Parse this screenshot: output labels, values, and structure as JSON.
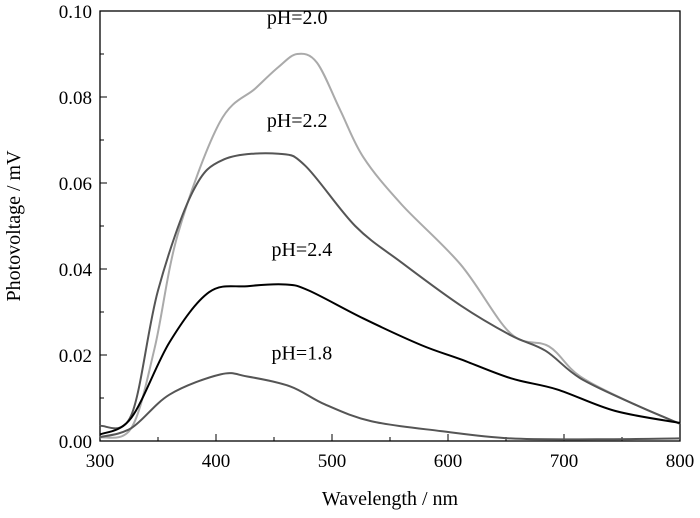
{
  "chart_data": {
    "type": "line",
    "xlabel": "Wavelength / nm",
    "ylabel": "Photovoltage / mV",
    "xlim": [
      300,
      800
    ],
    "ylim": [
      0,
      0.1
    ],
    "xticks": [
      "300",
      "400",
      "500",
      "600",
      "700",
      "800"
    ],
    "yticks": [
      "0.00",
      "0.02",
      "0.04",
      "0.06",
      "0.08",
      "0.10"
    ],
    "grid": false,
    "series": [
      {
        "name": "pH=2.0",
        "color": "#aaaaaa",
        "label_at": [
          470,
          0.097
        ],
        "x": [
          300,
          327,
          347,
          367,
          403,
          434,
          454,
          470,
          487,
          507,
          527,
          560,
          611,
          654,
          687,
          714,
          761,
          800
        ],
        "y": [
          0.0008,
          0.003,
          0.0215,
          0.048,
          0.074,
          0.082,
          0.087,
          0.09,
          0.088,
          0.077,
          0.066,
          0.055,
          0.041,
          0.025,
          0.022,
          0.015,
          0.0085,
          0.004
        ]
      },
      {
        "name": "pH=2.2",
        "color": "#555555",
        "label_at": [
          470,
          0.073
        ],
        "x": [
          300,
          327,
          350,
          380,
          407,
          454,
          477,
          520,
          560,
          611,
          654,
          684,
          714,
          761,
          800
        ],
        "y": [
          0.0035,
          0.006,
          0.035,
          0.058,
          0.0655,
          0.0668,
          0.064,
          0.05,
          0.0415,
          0.0315,
          0.0246,
          0.021,
          0.0146,
          0.0085,
          0.004
        ]
      },
      {
        "name": "pH=2.4",
        "color": "#000000",
        "label_at": [
          474,
          0.043
        ],
        "x": [
          300,
          327,
          360,
          394,
          427,
          460,
          480,
          527,
          577,
          611,
          654,
          694,
          744,
          800
        ],
        "y": [
          0.0015,
          0.0054,
          0.023,
          0.0346,
          0.036,
          0.0364,
          0.035,
          0.0285,
          0.0223,
          0.019,
          0.0146,
          0.012,
          0.007,
          0.0042
        ]
      },
      {
        "name": "pH=1.8",
        "color": "#555555",
        "label_at": [
          474,
          0.019
        ],
        "x": [
          300,
          327,
          360,
          404,
          427,
          464,
          494,
          534,
          594,
          654,
          728,
          800
        ],
        "y": [
          0.0009,
          0.003,
          0.0108,
          0.0155,
          0.015,
          0.0127,
          0.0085,
          0.0046,
          0.0023,
          0.0006,
          0.0004,
          0.0006
        ]
      }
    ]
  }
}
